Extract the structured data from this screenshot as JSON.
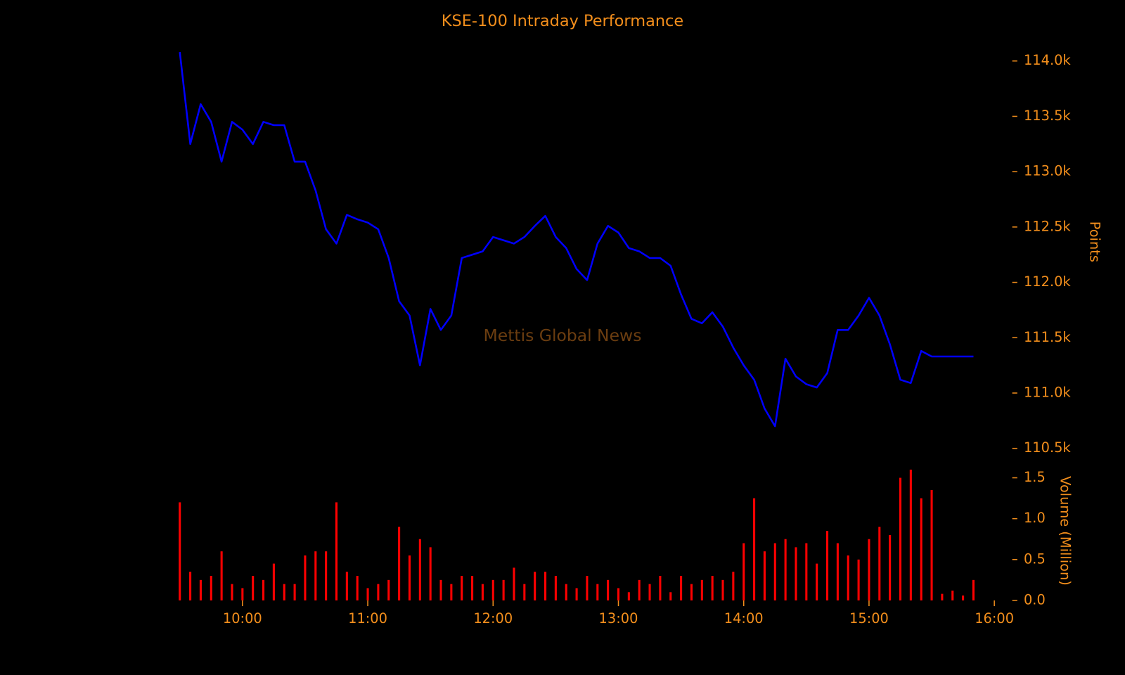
{
  "chart_data": [
    {
      "type": "line",
      "title": "KSE-100 Intraday Performance",
      "annotation": "Mettis Global News",
      "ylabel": "Points",
      "color": "#0000ff",
      "x": [
        "09:30",
        "09:35",
        "09:40",
        "09:45",
        "09:50",
        "09:55",
        "10:00",
        "10:05",
        "10:10",
        "10:15",
        "10:20",
        "10:25",
        "10:30",
        "10:35",
        "10:40",
        "10:45",
        "10:50",
        "10:55",
        "11:00",
        "11:05",
        "11:10",
        "11:15",
        "11:20",
        "11:25",
        "11:30",
        "11:35",
        "11:40",
        "11:45",
        "11:50",
        "11:55",
        "12:00",
        "12:05",
        "12:10",
        "12:15",
        "12:20",
        "12:25",
        "12:30",
        "12:35",
        "12:40",
        "12:45",
        "12:50",
        "12:55",
        "13:00",
        "13:05",
        "13:10",
        "13:15",
        "13:20",
        "13:25",
        "13:30",
        "13:35",
        "13:40",
        "13:45",
        "13:50",
        "13:55",
        "14:00",
        "14:05",
        "14:10",
        "14:15",
        "14:20",
        "14:25",
        "14:30",
        "14:35",
        "14:40",
        "14:45",
        "14:50",
        "14:55",
        "15:00",
        "15:05",
        "15:10",
        "15:15",
        "15:20",
        "15:25",
        "15:30",
        "15:35",
        "15:40",
        "15:45",
        "15:50"
      ],
      "values": [
        114080,
        113250,
        113610,
        113450,
        113090,
        113450,
        113380,
        113250,
        113450,
        113420,
        113420,
        113090,
        113090,
        112830,
        112480,
        112350,
        112610,
        112570,
        112540,
        112480,
        112220,
        111830,
        111700,
        111250,
        111760,
        111570,
        111700,
        112220,
        112250,
        112280,
        112410,
        112380,
        112350,
        112410,
        112510,
        112600,
        112410,
        112310,
        112120,
        112020,
        112350,
        112510,
        112450,
        112310,
        112280,
        112220,
        112220,
        112150,
        111890,
        111670,
        111630,
        111730,
        111600,
        111410,
        111250,
        111120,
        110860,
        110700,
        111310,
        111150,
        111080,
        111050,
        111180,
        111570,
        111570,
        111700,
        111860,
        111700,
        111440,
        111120,
        111090,
        111380,
        111330,
        111330,
        111330,
        111330,
        111330
      ],
      "xlim": [
        "09:30",
        "16:00"
      ],
      "ylim": [
        110400,
        114100
      ],
      "yticks": [
        {
          "value": 110500,
          "label": "110.5k"
        },
        {
          "value": 111000,
          "label": "111.0k"
        },
        {
          "value": 111500,
          "label": "111.5k"
        },
        {
          "value": 112000,
          "label": "112.0k"
        },
        {
          "value": 112500,
          "label": "112.5k"
        },
        {
          "value": 113000,
          "label": "113.0k"
        },
        {
          "value": 113500,
          "label": "113.5k"
        },
        {
          "value": 114000,
          "label": "114.0k"
        }
      ]
    },
    {
      "type": "bar",
      "ylabel": "Volume (Million)",
      "color": "#ff0000",
      "x": [
        "09:30",
        "09:35",
        "09:40",
        "09:45",
        "09:50",
        "09:55",
        "10:00",
        "10:05",
        "10:10",
        "10:15",
        "10:20",
        "10:25",
        "10:30",
        "10:35",
        "10:40",
        "10:45",
        "10:50",
        "10:55",
        "11:00",
        "11:05",
        "11:10",
        "11:15",
        "11:20",
        "11:25",
        "11:30",
        "11:35",
        "11:40",
        "11:45",
        "11:50",
        "11:55",
        "12:00",
        "12:05",
        "12:10",
        "12:15",
        "12:20",
        "12:25",
        "12:30",
        "12:35",
        "12:40",
        "12:45",
        "12:50",
        "12:55",
        "13:00",
        "13:05",
        "13:10",
        "13:15",
        "13:20",
        "13:25",
        "13:30",
        "13:35",
        "13:40",
        "13:45",
        "13:50",
        "13:55",
        "14:00",
        "14:05",
        "14:10",
        "14:15",
        "14:20",
        "14:25",
        "14:30",
        "14:35",
        "14:40",
        "14:45",
        "14:50",
        "14:55",
        "15:00",
        "15:05",
        "15:10",
        "15:15",
        "15:20",
        "15:25",
        "15:30",
        "15:35",
        "15:40",
        "15:45",
        "15:50"
      ],
      "values": [
        1.2,
        0.35,
        0.25,
        0.3,
        0.6,
        0.2,
        0.15,
        0.3,
        0.25,
        0.45,
        0.2,
        0.2,
        0.55,
        0.6,
        0.6,
        1.2,
        0.35,
        0.3,
        0.15,
        0.2,
        0.25,
        0.9,
        0.55,
        0.75,
        0.65,
        0.25,
        0.2,
        0.3,
        0.3,
        0.2,
        0.25,
        0.25,
        0.4,
        0.2,
        0.35,
        0.35,
        0.3,
        0.2,
        0.15,
        0.3,
        0.2,
        0.25,
        0.15,
        0.1,
        0.25,
        0.2,
        0.3,
        0.1,
        0.3,
        0.2,
        0.25,
        0.3,
        0.25,
        0.35,
        0.7,
        1.25,
        0.6,
        0.7,
        0.75,
        0.65,
        0.7,
        0.45,
        0.85,
        0.7,
        0.55,
        0.5,
        0.75,
        0.9,
        0.8,
        1.5,
        1.6,
        1.25,
        1.35,
        0.08,
        0.12,
        0.06,
        0.25
      ],
      "xlim": [
        "09:30",
        "16:00"
      ],
      "ylim": [
        0,
        1.65
      ],
      "yticks": [
        {
          "value": 0,
          "label": "0.0"
        },
        {
          "value": 0.5,
          "label": "0.5"
        },
        {
          "value": 1,
          "label": "1.0"
        },
        {
          "value": 1.5,
          "label": "1.5"
        }
      ],
      "xticks": [
        "10:00",
        "11:00",
        "12:00",
        "13:00",
        "14:00",
        "15:00",
        "16:00"
      ]
    }
  ]
}
